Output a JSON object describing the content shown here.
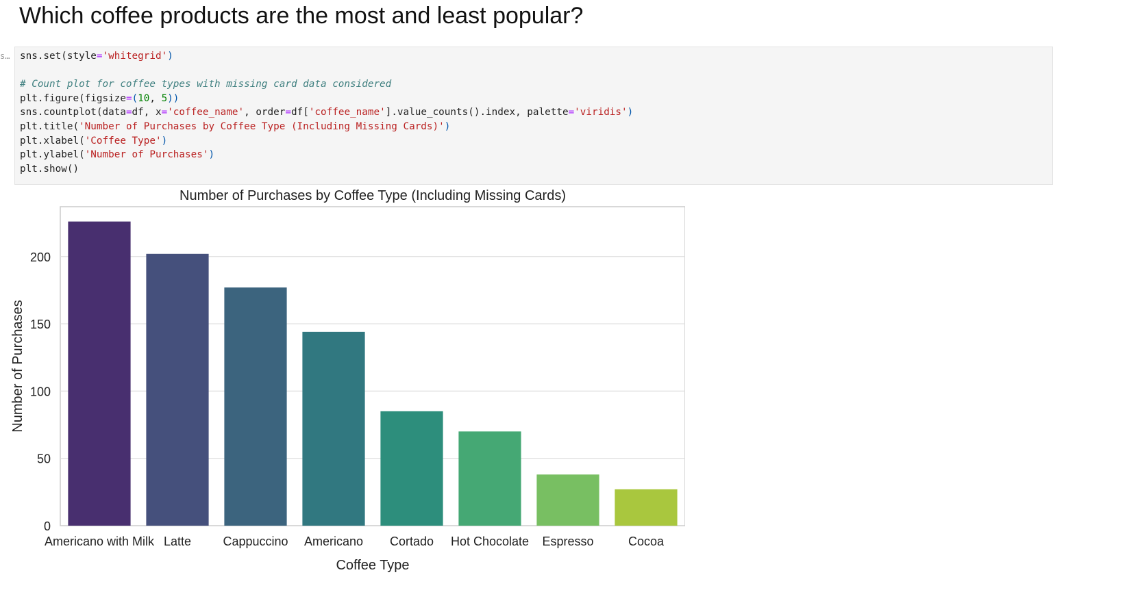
{
  "heading": "Which coffee products are the most and least popular?",
  "cell_prompt": "s…",
  "code_lines": [
    [
      {
        "t": "sns.set(style"
      },
      {
        "t": "=",
        "c": "o"
      },
      {
        "t": "'whitegrid'",
        "c": "s"
      },
      {
        "t": ")",
        "c": "p"
      }
    ],
    [],
    [
      {
        "t": "# Count plot for coffee types with missing card data considered",
        "c": "c"
      }
    ],
    [
      {
        "t": "plt.figure(figsize"
      },
      {
        "t": "=",
        "c": "o"
      },
      {
        "t": "(",
        "c": "p"
      },
      {
        "t": "10",
        "c": "n"
      },
      {
        "t": ", "
      },
      {
        "t": "5",
        "c": "n"
      },
      {
        "t": "))",
        "c": "p"
      }
    ],
    [
      {
        "t": "sns.countplot(data"
      },
      {
        "t": "=",
        "c": "o"
      },
      {
        "t": "df, x"
      },
      {
        "t": "=",
        "c": "o"
      },
      {
        "t": "'coffee_name'",
        "c": "s"
      },
      {
        "t": ", order"
      },
      {
        "t": "=",
        "c": "o"
      },
      {
        "t": "df["
      },
      {
        "t": "'coffee_name'",
        "c": "s"
      },
      {
        "t": "].value_counts().index, palette"
      },
      {
        "t": "=",
        "c": "o"
      },
      {
        "t": "'viridis'",
        "c": "s"
      },
      {
        "t": ")",
        "c": "p"
      }
    ],
    [
      {
        "t": "plt.title("
      },
      {
        "t": "'Number of Purchases by Coffee Type (Including Missing Cards)'",
        "c": "s"
      },
      {
        "t": ")",
        "c": "p"
      }
    ],
    [
      {
        "t": "plt.xlabel("
      },
      {
        "t": "'Coffee Type'",
        "c": "s"
      },
      {
        "t": ")",
        "c": "p"
      }
    ],
    [
      {
        "t": "plt.ylabel("
      },
      {
        "t": "'Number of Purchases'",
        "c": "s"
      },
      {
        "t": ")",
        "c": "p"
      }
    ],
    [
      {
        "t": "plt.show()"
      }
    ]
  ],
  "chart_data": {
    "type": "bar",
    "title": "Number of Purchases by Coffee Type (Including Missing Cards)",
    "xlabel": "Coffee Type",
    "ylabel": "Number of Purchases",
    "categories": [
      "Americano with Milk",
      "Latte",
      "Cappuccino",
      "Americano",
      "Cortado",
      "Hot Chocolate",
      "Espresso",
      "Cocoa"
    ],
    "values": [
      226,
      202,
      177,
      144,
      85,
      70,
      38,
      27
    ],
    "colors": [
      "#482f6f",
      "#45507c",
      "#3c647e",
      "#317880",
      "#2d8e7c",
      "#45a874",
      "#78bf62",
      "#a9c73e"
    ],
    "yticks": [
      0,
      50,
      100,
      150,
      200
    ],
    "ylim": [
      0,
      237
    ],
    "grid": true,
    "style": "whitegrid"
  }
}
